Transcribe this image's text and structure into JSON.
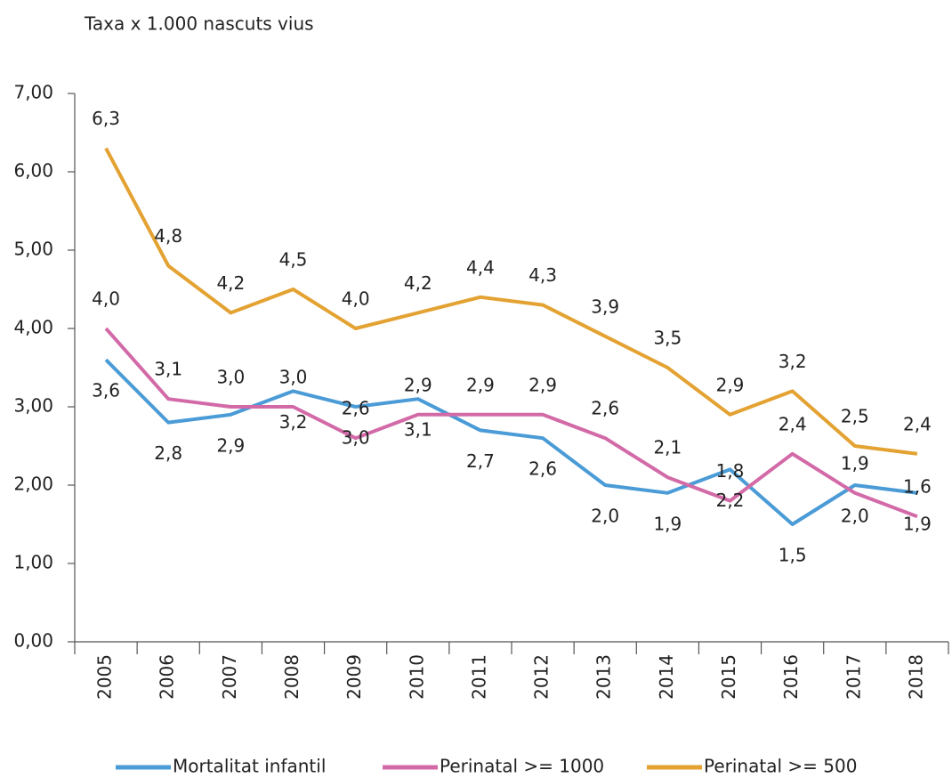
{
  "chart_data": {
    "type": "line",
    "y_label": "Taxa x 1.000 nascuts vius",
    "categories": [
      "2005",
      "2006",
      "2007",
      "2008",
      "2009",
      "2010",
      "2011",
      "2012",
      "2013",
      "2014",
      "2015",
      "2016",
      "2017",
      "2018"
    ],
    "series": [
      {
        "name": "Mortalitat infantil",
        "color": "#4a9bd6",
        "values": [
          3.6,
          2.8,
          2.9,
          3.2,
          3.0,
          3.1,
          2.7,
          2.6,
          2.0,
          1.9,
          2.2,
          1.5,
          2.0,
          1.9
        ],
        "value_labels": [
          "3,6",
          "2,8",
          "2,9",
          "3,2",
          "3,0",
          "3,1",
          "2,7",
          "2,6",
          "2,0",
          "1,9",
          "2,2",
          "1,5",
          "2,0",
          "1,9"
        ]
      },
      {
        "name": "Perinatal >= 1000",
        "color": "#d36aa8",
        "values": [
          4.0,
          3.1,
          3.0,
          3.0,
          2.6,
          2.9,
          2.9,
          2.9,
          2.6,
          2.1,
          1.8,
          2.4,
          1.9,
          1.6
        ],
        "value_labels": [
          "4,0",
          "3,1",
          "3,0",
          "3,0",
          "2,6",
          "2,9",
          "2,9",
          "2,9",
          "2,6",
          "2,1",
          "1,8",
          "2,4",
          "1,9",
          "1,6"
        ]
      },
      {
        "name": "Perinatal >= 500",
        "color": "#e3a232",
        "values": [
          6.3,
          4.8,
          4.2,
          4.5,
          4.0,
          4.2,
          4.4,
          4.3,
          3.9,
          3.5,
          2.9,
          3.2,
          2.5,
          2.4
        ],
        "value_labels": [
          "6,3",
          "4,8",
          "4,2",
          "4,5",
          "4,0",
          "4,2",
          "4,4",
          "4,3",
          "3,9",
          "3,5",
          "2,9",
          "3,2",
          "2,5",
          "2,4"
        ]
      }
    ],
    "ylim": [
      0,
      7
    ],
    "yticks": [
      {
        "value": 0,
        "label": "0,00"
      },
      {
        "value": 1,
        "label": "1,00"
      },
      {
        "value": 2,
        "label": "2,00"
      },
      {
        "value": 3,
        "label": "3,00"
      },
      {
        "value": 4,
        "label": "4,00"
      },
      {
        "value": 5,
        "label": "5,00"
      },
      {
        "value": 6,
        "label": "6,00"
      },
      {
        "value": 7,
        "label": "7,00"
      }
    ],
    "legend": "bottom"
  }
}
